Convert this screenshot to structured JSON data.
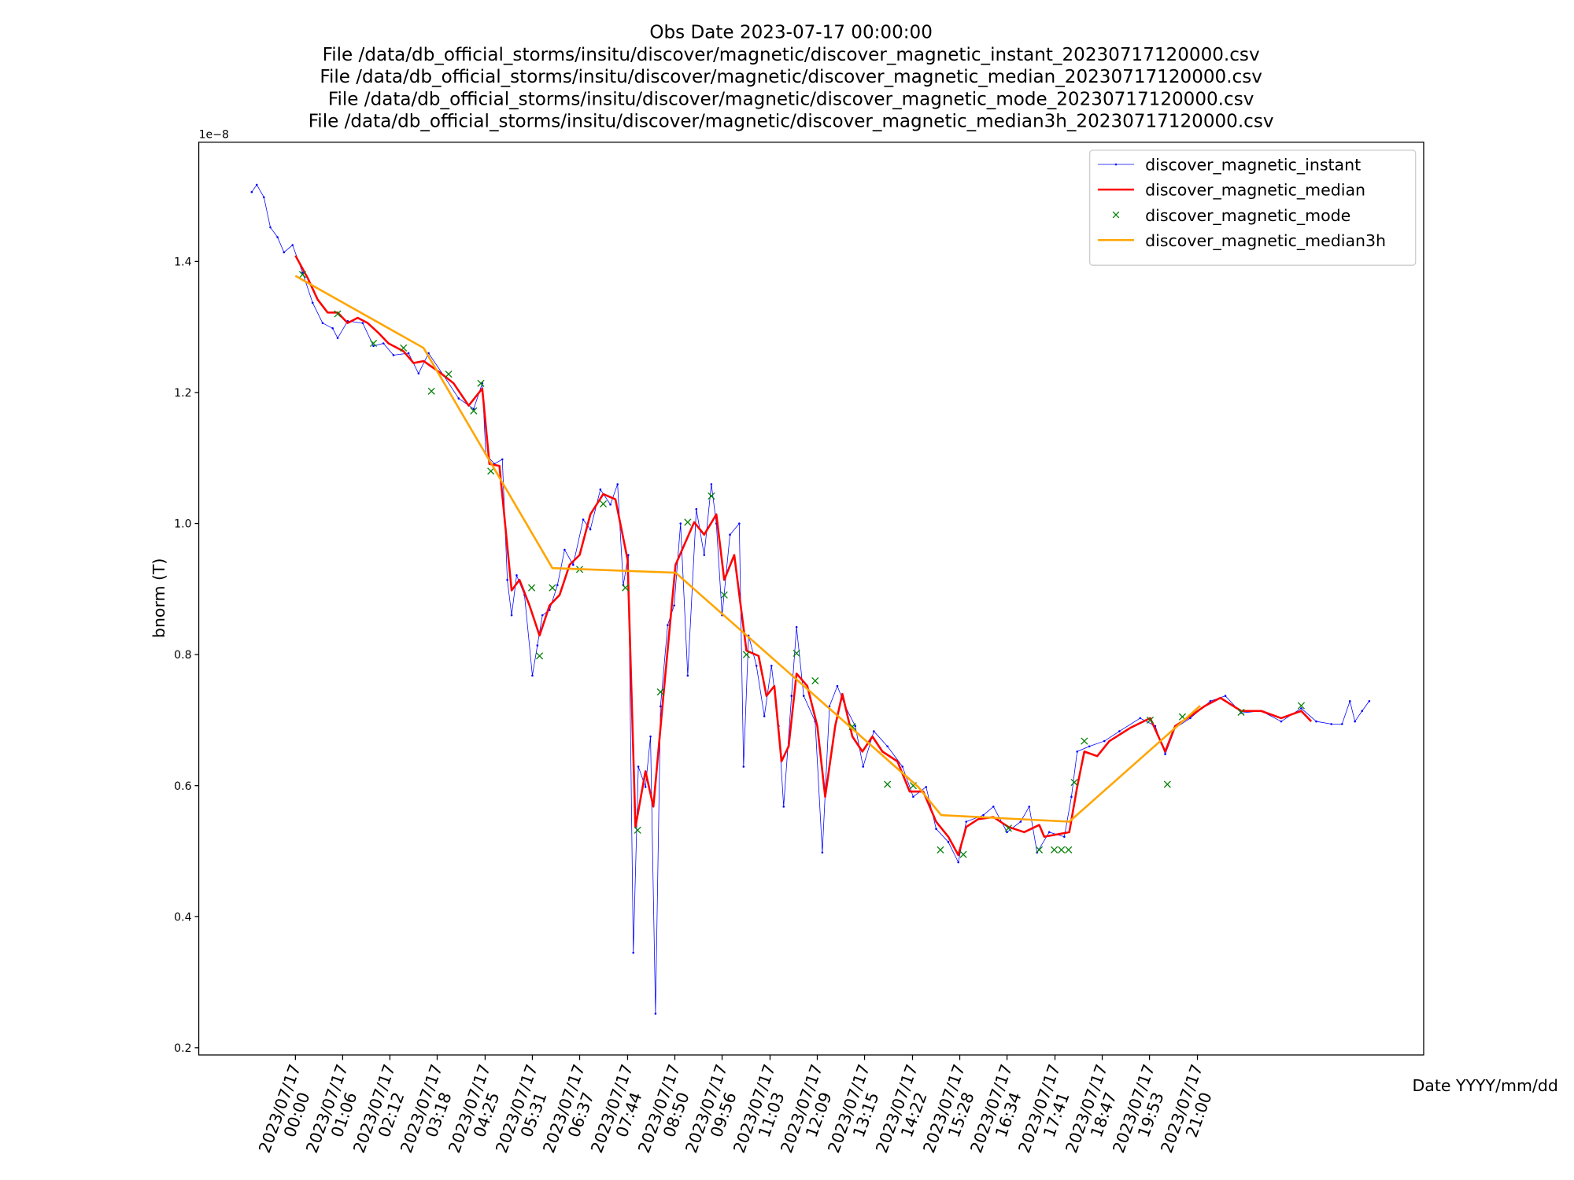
{
  "chart_data": {
    "type": "line",
    "title": [
      "Obs Date 2023-07-17 00:00:00",
      "File /data/db_official_storms/insitu/discover/magnetic/discover_magnetic_instant_20230717120000.csv",
      "File /data/db_official_storms/insitu/discover/magnetic/discover_magnetic_median_20230717120000.csv",
      "File /data/db_official_storms/insitu/discover/magnetic/discover_magnetic_mode_20230717120000.csv",
      "File /data/db_official_storms/insitu/discover/magnetic/discover_magnetic_median3h_20230717120000.csv"
    ],
    "ylabel": "bnorm (T)",
    "xlabel": "Date YYYY/mm/dd",
    "offset_label": "1e−8",
    "legend": "upper right",
    "grid": false,
    "xlim": [
      "2023-07-16 21:45",
      "2023-07-18 02:16"
    ],
    "ylim": [
      0.189,
      1.582
    ],
    "yticks": [
      0.2,
      0.4,
      0.6,
      0.8,
      {
        "value": 1,
        "label": "1.0"
      },
      1.2,
      1.4
    ],
    "xticks": [
      {
        "value": "2023-07-17 00:00",
        "label": "2023/07/17\n00:00"
      },
      {
        "value": "2023-07-17 01:06",
        "label": "2023/07/17\n01:06"
      },
      {
        "value": "2023-07-17 02:12",
        "label": "2023/07/17\n02:12"
      },
      {
        "value": "2023-07-17 03:18",
        "label": "2023/07/17\n03:18"
      },
      {
        "value": "2023-07-17 04:25",
        "label": "2023/07/17\n04:25"
      },
      {
        "value": "2023-07-17 05:31",
        "label": "2023/07/17\n05:31"
      },
      {
        "value": "2023-07-17 06:37",
        "label": "2023/07/17\n06:37"
      },
      {
        "value": "2023-07-17 07:44",
        "label": "2023/07/17\n07:44"
      },
      {
        "value": "2023-07-17 08:50",
        "label": "2023/07/17\n08:50"
      },
      {
        "value": "2023-07-17 09:56",
        "label": "2023/07/17\n09:56"
      },
      {
        "value": "2023-07-17 11:03",
        "label": "2023/07/17\n11:03"
      },
      {
        "value": "2023-07-17 12:09",
        "label": "2023/07/17\n12:09"
      },
      {
        "value": "2023-07-17 13:15",
        "label": "2023/07/17\n13:15"
      },
      {
        "value": "2023-07-17 14:22",
        "label": "2023/07/17\n14:22"
      },
      {
        "value": "2023-07-17 15:28",
        "label": "2023/07/17\n15:28"
      },
      {
        "value": "2023-07-17 16:34",
        "label": "2023/07/17\n16:34"
      },
      {
        "value": "2023-07-17 17:41",
        "label": "2023/07/17\n17:41"
      },
      {
        "value": "2023-07-17 18:47",
        "label": "2023/07/17\n18:47"
      },
      {
        "value": "2023-07-17 19:53",
        "label": "2023/07/17\n19:53"
      },
      {
        "value": "2023-07-17 21:00",
        "label": "2023/07/17\n21:00"
      }
    ],
    "series": [
      {
        "name": "discover_magnetic_instant",
        "color": "#0000ff",
        "linestyle": "thin",
        "marker": ".",
        "x": [
          "2023-07-16 22:59",
          "2023-07-16 23:06",
          "2023-07-16 23:16",
          "2023-07-16 23:25",
          "2023-07-16 23:35",
          "2023-07-16 23:44",
          "2023-07-16 23:56",
          "2023-07-17 00:10",
          "2023-07-17 00:24",
          "2023-07-17 00:38",
          "2023-07-17 00:52",
          "2023-07-17 00:59",
          "2023-07-17 01:13",
          "2023-07-17 01:34",
          "2023-07-17 01:49",
          "2023-07-17 02:03",
          "2023-07-17 02:17",
          "2023-07-17 02:38",
          "2023-07-17 02:52",
          "2023-07-17 03:06",
          "2023-07-17 03:27",
          "2023-07-17 03:48",
          "2023-07-17 04:09",
          "2023-07-17 04:21",
          "2023-07-17 04:26",
          "2023-07-17 04:38",
          "2023-07-17 04:49",
          "2023-07-17 04:56",
          "2023-07-17 05:02",
          "2023-07-17 05:09",
          "2023-07-17 05:20",
          "2023-07-17 05:31",
          "2023-07-17 05:38",
          "2023-07-17 05:45",
          "2023-07-17 05:55",
          "2023-07-17 06:06",
          "2023-07-17 06:16",
          "2023-07-17 06:28",
          "2023-07-17 06:42",
          "2023-07-17 06:52",
          "2023-07-17 07:06",
          "2023-07-17 07:20",
          "2023-07-17 07:30",
          "2023-07-17 07:38",
          "2023-07-17 07:45",
          "2023-07-17 07:52",
          "2023-07-17 07:59",
          "2023-07-17 08:09",
          "2023-07-17 08:16",
          "2023-07-17 08:23",
          "2023-07-17 08:30",
          "2023-07-17 08:40",
          "2023-07-17 08:49",
          "2023-07-17 08:58",
          "2023-07-17 09:08",
          "2023-07-17 09:20",
          "2023-07-17 09:31",
          "2023-07-17 09:41",
          "2023-07-17 09:48",
          "2023-07-17 09:56",
          "2023-07-17 10:07",
          "2023-07-17 10:20",
          "2023-07-17 10:26",
          "2023-07-17 10:33",
          "2023-07-17 10:44",
          "2023-07-17 10:55",
          "2023-07-17 11:05",
          "2023-07-17 11:15",
          "2023-07-17 11:22",
          "2023-07-17 11:33",
          "2023-07-17 11:40",
          "2023-07-17 11:50",
          "2023-07-17 12:06",
          "2023-07-17 12:16",
          "2023-07-17 12:26",
          "2023-07-17 12:37",
          "2023-07-17 12:48",
          "2023-07-17 13:02",
          "2023-07-17 13:13",
          "2023-07-17 13:28",
          "2023-07-17 13:47",
          "2023-07-17 14:08",
          "2023-07-17 14:23",
          "2023-07-17 14:41",
          "2023-07-17 14:55",
          "2023-07-17 15:12",
          "2023-07-17 15:26",
          "2023-07-17 15:37",
          "2023-07-17 16:01",
          "2023-07-17 16:15",
          "2023-07-17 16:34",
          "2023-07-17 16:53",
          "2023-07-17 17:05",
          "2023-07-17 17:16",
          "2023-07-17 17:33",
          "2023-07-17 17:54",
          "2023-07-17 18:04",
          "2023-07-17 18:12",
          "2023-07-17 18:29",
          "2023-07-17 18:50",
          "2023-07-17 19:11",
          "2023-07-17 19:40",
          "2023-07-17 20:01",
          "2023-07-17 20:15",
          "2023-07-17 20:29",
          "2023-07-17 20:50",
          "2023-07-17 21:18",
          "2023-07-17 21:39",
          "2023-07-17 22:01",
          "2023-07-17 22:29",
          "2023-07-17 22:57",
          "2023-07-17 23:25",
          "2023-07-17 23:46",
          "2023-07-18 00:07",
          "2023-07-18 00:22",
          "2023-07-18 00:33",
          "2023-07-18 00:40",
          "2023-07-18 00:50",
          "2023-07-18 01:00"
        ],
        "values": [
          1.506,
          1.517,
          1.498,
          1.452,
          1.437,
          1.414,
          1.425,
          1.383,
          1.337,
          1.306,
          1.298,
          1.283,
          1.309,
          1.306,
          1.271,
          1.275,
          1.257,
          1.26,
          1.229,
          1.26,
          1.226,
          1.191,
          1.175,
          1.214,
          1.106,
          1.091,
          1.098,
          0.914,
          0.86,
          0.921,
          0.891,
          0.768,
          0.814,
          0.86,
          0.868,
          0.906,
          0.96,
          0.937,
          1.006,
          0.991,
          1.052,
          1.029,
          1.06,
          0.906,
          0.952,
          0.345,
          0.629,
          0.598,
          0.675,
          0.252,
          0.721,
          0.845,
          0.875,
          1.0,
          0.768,
          1.022,
          0.952,
          1.06,
          1.0,
          0.86,
          0.983,
          1.0,
          0.629,
          0.829,
          0.783,
          0.706,
          0.783,
          0.691,
          0.568,
          0.737,
          0.842,
          0.737,
          0.698,
          0.498,
          0.721,
          0.752,
          0.721,
          0.691,
          0.629,
          0.683,
          0.66,
          0.629,
          0.583,
          0.598,
          0.534,
          0.514,
          0.483,
          0.545,
          0.555,
          0.568,
          0.529,
          0.545,
          0.568,
          0.498,
          0.529,
          0.522,
          0.583,
          0.652,
          0.66,
          0.668,
          0.683,
          0.703,
          0.691,
          0.648,
          0.688,
          0.703,
          0.729,
          0.737,
          0.711,
          0.714,
          0.698,
          0.718,
          0.698,
          0.694,
          0.694,
          0.729,
          0.698,
          0.714,
          0.729
        ]
      },
      {
        "name": "discover_magnetic_median",
        "color": "#ff0000",
        "linestyle": "solid",
        "x": [
          "2023-07-17 00:00",
          "2023-07-17 00:17",
          "2023-07-17 00:31",
          "2023-07-17 00:45",
          "2023-07-17 00:59",
          "2023-07-17 01:13",
          "2023-07-17 01:27",
          "2023-07-17 01:41",
          "2023-07-17 01:56",
          "2023-07-17 02:10",
          "2023-07-17 02:31",
          "2023-07-17 02:45",
          "2023-07-17 02:59",
          "2023-07-17 03:20",
          "2023-07-17 03:41",
          "2023-07-17 04:02",
          "2023-07-17 04:21",
          "2023-07-17 04:31",
          "2023-07-17 04:45",
          "2023-07-17 05:02",
          "2023-07-17 05:13",
          "2023-07-17 05:27",
          "2023-07-17 05:41",
          "2023-07-17 05:55",
          "2023-07-17 06:09",
          "2023-07-17 06:23",
          "2023-07-17 06:37",
          "2023-07-17 06:52",
          "2023-07-17 07:10",
          "2023-07-17 07:27",
          "2023-07-17 07:44",
          "2023-07-17 07:55",
          "2023-07-17 08:09",
          "2023-07-17 08:20",
          "2023-07-17 08:34",
          "2023-07-17 08:51",
          "2023-07-17 09:17",
          "2023-07-17 09:31",
          "2023-07-17 09:48",
          "2023-07-17 09:59",
          "2023-07-17 10:13",
          "2023-07-17 10:30",
          "2023-07-17 10:47",
          "2023-07-17 10:58",
          "2023-07-17 11:09",
          "2023-07-17 11:19",
          "2023-07-17 11:29",
          "2023-07-17 11:40",
          "2023-07-17 11:55",
          "2023-07-17 12:09",
          "2023-07-17 12:20",
          "2023-07-17 12:34",
          "2023-07-17 12:44",
          "2023-07-17 12:58",
          "2023-07-17 13:12",
          "2023-07-17 13:26",
          "2023-07-17 13:40",
          "2023-07-17 14:01",
          "2023-07-17 14:18",
          "2023-07-17 14:37",
          "2023-07-17 14:55",
          "2023-07-17 15:12",
          "2023-07-17 15:26",
          "2023-07-17 15:37",
          "2023-07-17 15:54",
          "2023-07-17 16:15",
          "2023-07-17 16:36",
          "2023-07-17 16:58",
          "2023-07-17 17:19",
          "2023-07-17 17:26",
          "2023-07-17 18:01",
          "2023-07-17 18:12",
          "2023-07-17 18:22",
          "2023-07-17 18:40",
          "2023-07-17 18:57",
          "2023-07-17 19:26",
          "2023-07-17 19:54",
          "2023-07-17 20:15",
          "2023-07-17 20:29",
          "2023-07-17 20:50",
          "2023-07-17 21:11",
          "2023-07-17 21:32",
          "2023-07-17 22:01",
          "2023-07-17 22:29",
          "2023-07-17 22:57",
          "2023-07-17 23:25",
          "2023-07-17 23:39"
        ],
        "values": [
          1.409,
          1.375,
          1.342,
          1.322,
          1.322,
          1.306,
          1.314,
          1.306,
          1.291,
          1.275,
          1.263,
          1.245,
          1.248,
          1.232,
          1.214,
          1.18,
          1.206,
          1.091,
          1.088,
          0.898,
          0.914,
          0.875,
          0.829,
          0.875,
          0.891,
          0.937,
          0.952,
          1.014,
          1.045,
          1.037,
          0.945,
          0.537,
          0.622,
          0.568,
          0.737,
          0.937,
          1.002,
          0.983,
          1.014,
          0.914,
          0.952,
          0.806,
          0.798,
          0.737,
          0.752,
          0.637,
          0.66,
          0.771,
          0.752,
          0.691,
          0.583,
          0.691,
          0.74,
          0.675,
          0.652,
          0.675,
          0.652,
          0.637,
          0.591,
          0.591,
          0.545,
          0.522,
          0.494,
          0.537,
          0.549,
          0.552,
          0.537,
          0.529,
          0.54,
          0.522,
          0.529,
          0.598,
          0.652,
          0.645,
          0.668,
          0.688,
          0.703,
          0.652,
          0.691,
          0.706,
          0.722,
          0.734,
          0.714,
          0.714,
          0.703,
          0.714,
          0.698
        ]
      },
      {
        "name": "discover_magnetic_mode",
        "color": "#008000",
        "linestyle": "none",
        "marker": "x",
        "x": [
          "2023-07-17 00:10",
          "2023-07-17 00:59",
          "2023-07-17 01:49",
          "2023-07-17 02:31",
          "2023-07-17 03:10",
          "2023-07-17 03:34",
          "2023-07-17 04:09",
          "2023-07-17 04:19",
          "2023-07-17 04:33",
          "2023-07-17 05:30",
          "2023-07-17 05:41",
          "2023-07-17 05:59",
          "2023-07-17 06:37",
          "2023-07-17 07:10",
          "2023-07-17 07:41",
          "2023-07-17 07:58",
          "2023-07-17 08:30",
          "2023-07-17 09:08",
          "2023-07-17 09:41",
          "2023-07-17 09:59",
          "2023-07-17 10:30",
          "2023-07-17 11:40",
          "2023-07-17 12:06",
          "2023-07-17 12:58",
          "2023-07-17 13:47",
          "2023-07-17 14:23",
          "2023-07-17 15:01",
          "2023-07-17 15:33",
          "2023-07-17 16:36",
          "2023-07-17 17:19",
          "2023-07-17 17:40",
          "2023-07-17 17:50",
          "2023-07-17 18:00",
          "2023-07-17 18:08",
          "2023-07-17 18:22",
          "2023-07-17 19:54",
          "2023-07-17 20:18",
          "2023-07-17 20:39",
          "2023-07-17 22:01",
          "2023-07-17 23:25"
        ],
        "values": [
          1.38,
          1.32,
          1.275,
          1.268,
          1.202,
          1.228,
          1.172,
          1.214,
          1.08,
          0.902,
          0.798,
          0.902,
          0.93,
          1.03,
          0.902,
          0.532,
          0.743,
          1.002,
          1.042,
          0.891,
          0.8,
          0.802,
          0.76,
          0.69,
          0.602,
          0.6,
          0.502,
          0.495,
          0.535,
          0.502,
          0.502,
          0.502,
          0.502,
          0.605,
          0.668,
          0.7,
          0.602,
          0.705,
          0.712,
          0.722
        ]
      },
      {
        "name": "discover_magnetic_median3h",
        "color": "#ffa500",
        "linestyle": "solid",
        "x": [
          "2023-07-17 00:00",
          "2023-07-17 02:59",
          "2023-07-17 05:59",
          "2023-07-17 08:51",
          "2023-07-17 14:30",
          "2023-07-17 15:02",
          "2023-07-17 18:01",
          "2023-07-17 21:04"
        ],
        "values": [
          1.378,
          1.268,
          0.932,
          0.925,
          0.598,
          0.555,
          0.545,
          0.722
        ]
      }
    ]
  }
}
